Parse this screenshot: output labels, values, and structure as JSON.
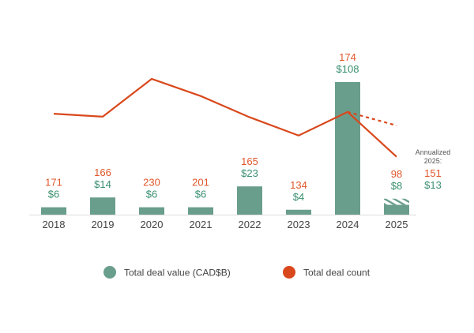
{
  "chart_data": {
    "type": "bar+line",
    "categories": [
      "2018",
      "2019",
      "2020",
      "2021",
      "2022",
      "2023",
      "2024",
      "2025"
    ],
    "series": [
      {
        "name": "Total deal value (CAD$B)",
        "type": "bar",
        "values": [
          6,
          14,
          6,
          6,
          23,
          4,
          108,
          8
        ],
        "labels": [
          "$6",
          "$14",
          "$6",
          "$6",
          "$23",
          "$4",
          "$108",
          "$8"
        ],
        "color": "#6a9e8c"
      },
      {
        "name": "Total deal count",
        "type": "line",
        "values": [
          171,
          166,
          230,
          201,
          165,
          134,
          174,
          98
        ],
        "labels": [
          "171",
          "166",
          "230",
          "201",
          "165",
          "134",
          "174",
          "98"
        ],
        "color": "#d9481c"
      }
    ],
    "annualized": {
      "label_line1": "Annualized",
      "label_line2": "2025:",
      "count": 151,
      "count_label": "151",
      "value": 13,
      "value_label": "$13",
      "style": "dashed line / hatched bar extension"
    },
    "legend_position": "bottom",
    "grid": false
  },
  "legend": {
    "value_label": "Total deal value (CAD$B)",
    "count_label": "Total deal count"
  }
}
